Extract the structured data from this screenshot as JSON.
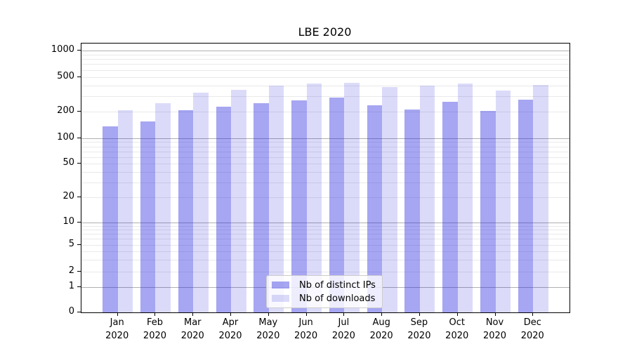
{
  "chart_data": {
    "type": "bar",
    "title": "LBE 2020",
    "yscale": "symlog",
    "ylim": [
      0,
      1200
    ],
    "y_ticks": [
      0,
      1,
      2,
      5,
      10,
      20,
      50,
      100,
      200,
      500,
      1000
    ],
    "grid": {
      "major_color": "#b0b0b0",
      "minor_color": "#e9e9e9",
      "grid_on": true
    },
    "categories": [
      "Jan 2020",
      "Feb 2020",
      "Mar 2020",
      "Apr 2020",
      "May 2020",
      "Jun 2020",
      "Jul 2020",
      "Aug 2020",
      "Sep 2020",
      "Oct 2020",
      "Nov 2020",
      "Dec 2020"
    ],
    "series": [
      {
        "name": "Nb of distinct IPs",
        "color": "rgba(33,33,223,0.40)",
        "values": [
          137,
          156,
          209,
          230,
          252,
          268,
          289,
          236,
          213,
          263,
          206,
          275
        ]
      },
      {
        "name": "Nb of downloads",
        "color": "rgba(15,15,215,0.15)",
        "values": [
          209,
          251,
          330,
          357,
          398,
          421,
          429,
          387,
          398,
          424,
          347,
          409
        ]
      }
    ],
    "legend_position": "inside-lower-center"
  }
}
